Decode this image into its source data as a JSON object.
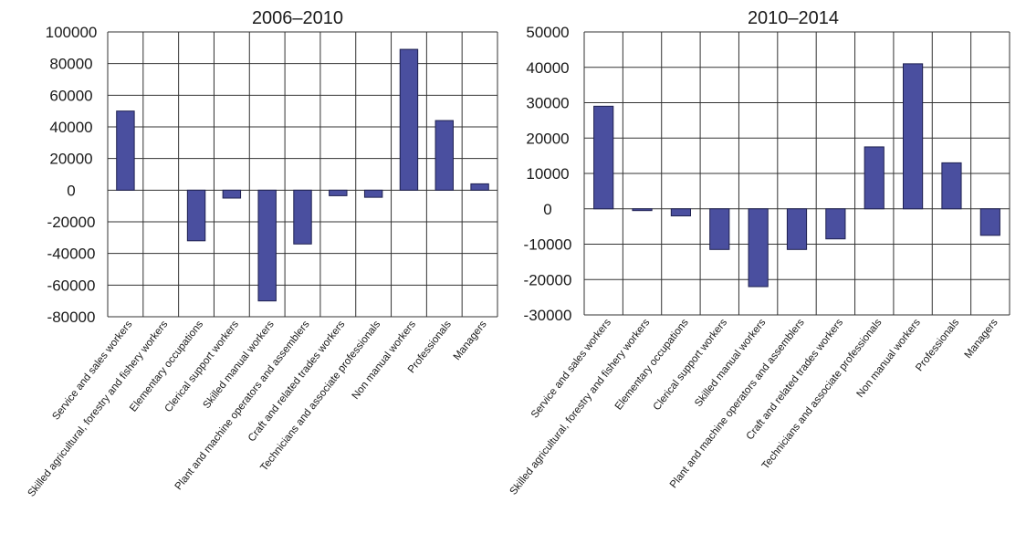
{
  "chart_data": [
    {
      "type": "bar",
      "title": "2006–2010",
      "xlabel": "",
      "ylabel": "",
      "ylim": [
        -80000,
        100000
      ],
      "yticks": [
        100000,
        80000,
        60000,
        40000,
        20000,
        0,
        -20000,
        -40000,
        -60000,
        -80000
      ],
      "grid": true,
      "categories": [
        "Service and sales workers",
        "Skilled agricultural, forestry and fishery workers",
        "Elementary occupations",
        "Clerical support workers",
        "Skilled manual workers",
        "Plant and machine operators and assemblers",
        "Craft and related trades workers",
        "Technicians and associate professionals",
        "Non manual workers",
        "Professionals",
        "Managers"
      ],
      "values": [
        50000,
        0,
        -32000,
        -5000,
        -70000,
        -34000,
        -3500,
        -4500,
        89000,
        44000,
        4000
      ],
      "color": "#4a4f9f"
    },
    {
      "type": "bar",
      "title": "2010–2014",
      "xlabel": "",
      "ylabel": "",
      "ylim": [
        -30000,
        50000
      ],
      "yticks": [
        50000,
        40000,
        30000,
        20000,
        10000,
        0,
        -10000,
        -20000,
        -30000
      ],
      "grid": true,
      "categories": [
        "Service and sales workers",
        "Skilled agricultural, forestry and fishery workers",
        "Elementary occupations",
        "Clerical support workers",
        "Skilled manual workers",
        "Plant and machine operators and assemblers",
        "Craft and related trades workers",
        "Technicians and associate professionals",
        "Non manual workers",
        "Professionals",
        "Managers"
      ],
      "values": [
        29000,
        -500,
        -2000,
        -11500,
        -22000,
        -11500,
        -8500,
        17500,
        41000,
        13000,
        -7500
      ],
      "color": "#4a4f9f"
    }
  ]
}
